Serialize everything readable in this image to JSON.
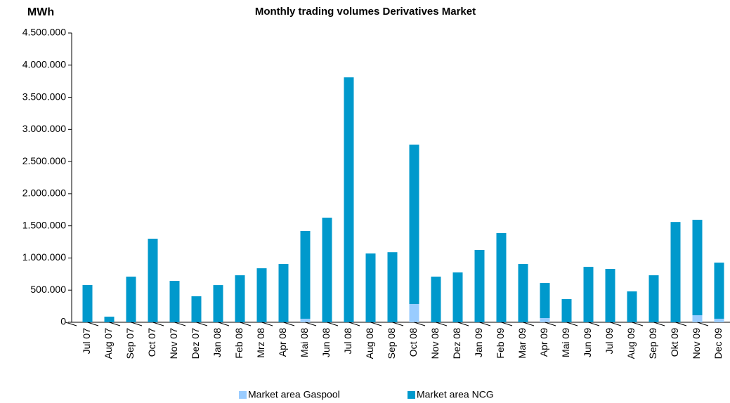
{
  "chart_data": {
    "type": "stacked_bar",
    "title": "Monthly trading volumes Derivatives Market",
    "y_label": "MWh",
    "categories": [
      "Jul 07",
      "Aug 07",
      "Sep 07",
      "Oct 07",
      "Nov 07",
      "Dez 07",
      "Jan 08",
      "Feb 08",
      "Mrz 08",
      "Apr 08",
      "Mai 08",
      "Jun 08",
      "Jul 08",
      "Aug 08",
      "Sep 08",
      "Oct 08",
      "Nov 08",
      "Dez 08",
      "Jan 09",
      "Feb 09",
      "Mar 09",
      "Apr 09",
      "Mai 09",
      "Jun 09",
      "Jul 09",
      "Aug 09",
      "Sep 09",
      "Okt 09",
      "Nov 09",
      "Dec 09"
    ],
    "series": [
      {
        "name": "Market area Gaspool",
        "color": "#99ccff",
        "values": [
          0,
          0,
          0,
          0,
          0,
          0,
          0,
          0,
          0,
          0,
          55000,
          0,
          0,
          0,
          0,
          284000,
          0,
          0,
          0,
          0,
          0,
          65000,
          0,
          0,
          0,
          0,
          0,
          0,
          109000,
          55000
        ]
      },
      {
        "name": "Market area NCG",
        "color": "#0099cc",
        "values": [
          579000,
          87000,
          710000,
          1300000,
          644000,
          404000,
          578000,
          731000,
          840000,
          906000,
          1365000,
          1627000,
          3810000,
          1070000,
          1090000,
          2480000,
          710000,
          775000,
          1125000,
          1387000,
          906000,
          546000,
          360000,
          862000,
          830000,
          480000,
          731000,
          1560000,
          1485000,
          873000
        ]
      }
    ],
    "ylim": [
      0,
      4500000
    ],
    "yticks": [
      0,
      {
        "value": 500000,
        "label": "500.000"
      },
      {
        "value": 1000000,
        "label": "1.000.000"
      },
      {
        "value": 1500000,
        "label": "1.500.000"
      },
      {
        "value": 2000000,
        "label": "2.000.000"
      },
      {
        "value": 2500000,
        "label": "2.500.000"
      },
      {
        "value": 3000000,
        "label": "3.000.000"
      },
      {
        "value": 3500000,
        "label": "3.500.000"
      },
      {
        "value": 4000000,
        "label": "4.000.000"
      },
      {
        "value": 4500000,
        "label": "4.500.000"
      }
    ],
    "grid": false,
    "legend": "bottom"
  }
}
